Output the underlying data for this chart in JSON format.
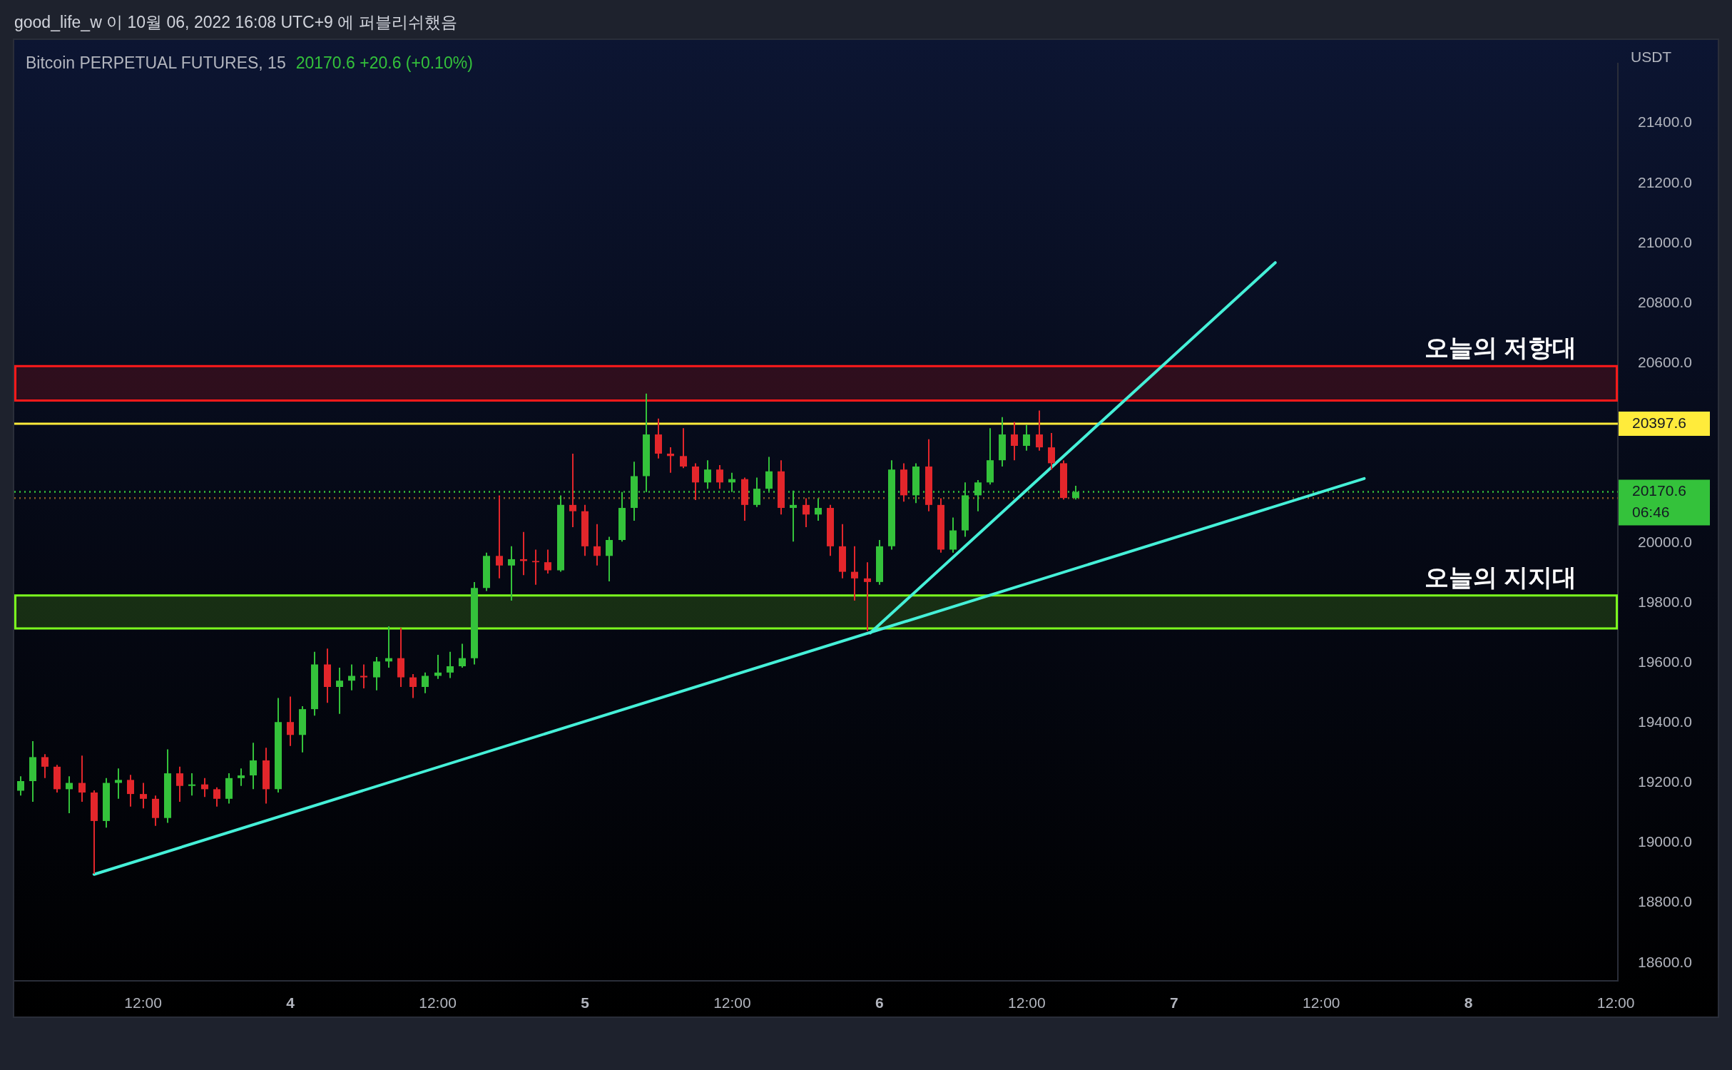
{
  "chart_data": {
    "type": "candlestick",
    "title": "Bitcoin PERPETUAL FUTURES, 15",
    "subtitle": "20170.6 +20.6 (+0.10%)",
    "ylabel": "USDT",
    "annotations": [
      "good_life_w 이 10월 06, 2022 16:08 UTC+9 에 퍼블리쉬했음"
    ],
    "x": [
      "2022-10-03T02:00",
      "2022-10-03T03:00",
      "2022-10-03T04:00",
      "2022-10-03T05:00",
      "2022-10-03T06:00",
      "2022-10-03T07:00",
      "2022-10-03T08:00",
      "2022-10-03T09:00",
      "2022-10-03T10:00",
      "2022-10-03T11:00",
      "2022-10-03T12:00",
      "2022-10-03T13:00",
      "2022-10-03T14:00",
      "2022-10-03T15:00",
      "2022-10-03T16:00",
      "2022-10-03T17:00",
      "2022-10-03T18:00",
      "2022-10-03T19:00",
      "2022-10-03T20:00",
      "2022-10-03T21:00",
      "2022-10-03T22:00",
      "2022-10-03T23:00",
      "2022-10-04T00:00",
      "2022-10-04T01:00",
      "2022-10-04T02:00",
      "2022-10-04T03:00",
      "2022-10-04T04:00",
      "2022-10-04T05:00",
      "2022-10-04T06:00",
      "2022-10-04T07:00",
      "2022-10-04T08:00",
      "2022-10-04T09:00",
      "2022-10-04T10:00",
      "2022-10-04T11:00",
      "2022-10-04T12:00",
      "2022-10-04T13:00",
      "2022-10-04T14:00",
      "2022-10-04T15:00",
      "2022-10-04T16:00",
      "2022-10-04T17:00",
      "2022-10-04T18:00",
      "2022-10-04T19:00",
      "2022-10-04T20:00",
      "2022-10-04T21:00",
      "2022-10-04T22:00",
      "2022-10-04T23:00",
      "2022-10-05T00:00",
      "2022-10-05T01:00",
      "2022-10-05T02:00",
      "2022-10-05T03:00",
      "2022-10-05T04:00",
      "2022-10-05T05:00",
      "2022-10-05T06:00",
      "2022-10-05T07:00",
      "2022-10-05T08:00",
      "2022-10-05T09:00",
      "2022-10-05T10:00",
      "2022-10-05T11:00",
      "2022-10-05T12:00",
      "2022-10-05T13:00",
      "2022-10-05T14:00",
      "2022-10-05T15:00",
      "2022-10-05T16:00",
      "2022-10-05T17:00",
      "2022-10-05T18:00",
      "2022-10-05T19:00",
      "2022-10-05T20:00",
      "2022-10-05T21:00",
      "2022-10-05T22:00",
      "2022-10-05T23:00",
      "2022-10-06T00:00",
      "2022-10-06T01:00",
      "2022-10-06T02:00",
      "2022-10-06T03:00",
      "2022-10-06T04:00",
      "2022-10-06T05:00",
      "2022-10-06T06:00",
      "2022-10-06T07:00",
      "2022-10-06T08:00",
      "2022-10-06T09:00",
      "2022-10-06T10:00",
      "2022-10-06T11:00",
      "2022-10-06T12:00",
      "2022-10-06T13:00",
      "2022-10-06T14:00",
      "2022-10-06T15:00",
      "2022-10-06T16:00"
    ],
    "ohlc": [
      [
        19174,
        19222,
        19158,
        19206
      ],
      [
        19206,
        19339,
        19137,
        19286
      ],
      [
        19286,
        19296,
        19216,
        19254
      ],
      [
        19254,
        19260,
        19168,
        19179
      ],
      [
        19179,
        19222,
        19099,
        19200
      ],
      [
        19200,
        19291,
        19137,
        19168
      ],
      [
        19168,
        19175,
        18897,
        19073
      ],
      [
        19073,
        19216,
        19051,
        19200
      ],
      [
        19200,
        19248,
        19147,
        19210
      ],
      [
        19210,
        19227,
        19121,
        19163
      ],
      [
        19163,
        19200,
        19115,
        19147
      ],
      [
        19147,
        19158,
        19057,
        19083
      ],
      [
        19083,
        19312,
        19067,
        19232
      ],
      [
        19232,
        19254,
        19137,
        19190
      ],
      [
        19190,
        19232,
        19158,
        19195
      ],
      [
        19195,
        19216,
        19153,
        19179
      ],
      [
        19179,
        19185,
        19121,
        19147
      ],
      [
        19147,
        19232,
        19131,
        19216
      ],
      [
        19216,
        19248,
        19190,
        19225
      ],
      [
        19225,
        19334,
        19179,
        19275
      ],
      [
        19275,
        19317,
        19131,
        19179
      ],
      [
        19179,
        19483,
        19168,
        19403
      ],
      [
        19403,
        19488,
        19323,
        19360
      ],
      [
        19360,
        19456,
        19302,
        19446
      ],
      [
        19446,
        19637,
        19424,
        19595
      ],
      [
        19595,
        19648,
        19467,
        19520
      ],
      [
        19520,
        19584,
        19430,
        19541
      ],
      [
        19541,
        19595,
        19509,
        19557
      ],
      [
        19557,
        19595,
        19515,
        19552
      ],
      [
        19552,
        19620,
        19509,
        19605
      ],
      [
        19605,
        19722,
        19584,
        19616
      ],
      [
        19616,
        19717,
        19520,
        19552
      ],
      [
        19552,
        19563,
        19483,
        19520
      ],
      [
        19520,
        19568,
        19499,
        19557
      ],
      [
        19557,
        19627,
        19547,
        19568
      ],
      [
        19568,
        19637,
        19550,
        19589
      ],
      [
        19589,
        19664,
        19584,
        19616
      ],
      [
        19616,
        19870,
        19595,
        19850
      ],
      [
        19850,
        19968,
        19840,
        19957
      ],
      [
        19957,
        20159,
        19882,
        19925
      ],
      [
        19925,
        19989,
        19808,
        19946
      ],
      [
        19946,
        20037,
        19893,
        19940
      ],
      [
        19940,
        19978,
        19861,
        19936
      ],
      [
        19936,
        19978,
        19898,
        19909
      ],
      [
        19909,
        20159,
        19904,
        20127
      ],
      [
        20127,
        20298,
        20053,
        20106
      ],
      [
        20106,
        20127,
        19957,
        19989
      ],
      [
        19989,
        20063,
        19925,
        19957
      ],
      [
        19957,
        20021,
        19872,
        20010
      ],
      [
        20010,
        20170,
        20005,
        20117
      ],
      [
        20117,
        20271,
        20074,
        20223
      ],
      [
        20223,
        20498,
        20170,
        20362
      ],
      [
        20362,
        20415,
        20282,
        20298
      ],
      [
        20298,
        20319,
        20234,
        20290
      ],
      [
        20290,
        20383,
        20250,
        20255
      ],
      [
        20255,
        20266,
        20143,
        20202
      ],
      [
        20202,
        20276,
        20181,
        20245
      ],
      [
        20245,
        20260,
        20181,
        20202
      ],
      [
        20202,
        20234,
        20170,
        20213
      ],
      [
        20213,
        20218,
        20074,
        20127
      ],
      [
        20127,
        20218,
        20120,
        20181
      ],
      [
        20181,
        20287,
        20170,
        20239
      ],
      [
        20239,
        20276,
        20095,
        20117
      ],
      [
        20117,
        20175,
        20005,
        20127
      ],
      [
        20127,
        20149,
        20053,
        20095
      ],
      [
        20095,
        20149,
        20074,
        20117
      ],
      [
        20117,
        20127,
        19957,
        19989
      ],
      [
        19989,
        20063,
        19882,
        19904
      ],
      [
        19904,
        19989,
        19808,
        19882
      ],
      [
        19882,
        19936,
        19707,
        19870
      ],
      [
        19870,
        20010,
        19861,
        19989
      ],
      [
        19989,
        20276,
        19978,
        20245
      ],
      [
        20245,
        20266,
        20138,
        20159
      ],
      [
        20159,
        20266,
        20133,
        20255
      ],
      [
        20255,
        20346,
        20106,
        20127
      ],
      [
        20127,
        20149,
        19968,
        19978
      ],
      [
        19978,
        20085,
        19968,
        20042
      ],
      [
        20042,
        20202,
        20021,
        20159
      ],
      [
        20159,
        20210,
        20106,
        20202
      ],
      [
        20202,
        20383,
        20195,
        20276
      ],
      [
        20276,
        20420,
        20255,
        20362
      ],
      [
        20362,
        20404,
        20276,
        20324
      ],
      [
        20324,
        20394,
        20308,
        20362
      ],
      [
        20362,
        20442,
        20308,
        20319
      ],
      [
        20319,
        20367,
        20245,
        20266
      ],
      [
        20266,
        20275,
        20145,
        20150
      ],
      [
        20150,
        20191,
        20145,
        20170.6
      ]
    ],
    "colors": [
      "#34c23b",
      "#34c23b",
      "#e3262b",
      "#e3262b",
      "#34c23b",
      "#e3262b",
      "#e3262b",
      "#34c23b",
      "#34c23b",
      "#e3262b",
      "#e3262b",
      "#e3262b",
      "#34c23b",
      "#e3262b",
      "#34c23b",
      "#e3262b",
      "#e3262b",
      "#34c23b",
      "#34c23b",
      "#34c23b",
      "#e3262b",
      "#34c23b",
      "#e3262b",
      "#34c23b",
      "#34c23b",
      "#e3262b",
      "#34c23b",
      "#34c23b",
      "#e3262b",
      "#34c23b",
      "#34c23b",
      "#e3262b",
      "#e3262b",
      "#34c23b",
      "#34c23b",
      "#34c23b",
      "#34c23b",
      "#34c23b",
      "#34c23b",
      "#e3262b",
      "#34c23b",
      "#e3262b",
      "#e3262b",
      "#e3262b",
      "#34c23b",
      "#e3262b",
      "#e3262b",
      "#e3262b",
      "#34c23b",
      "#34c23b",
      "#34c23b",
      "#34c23b",
      "#e3262b",
      "#e3262b",
      "#e3262b",
      "#e3262b",
      "#34c23b",
      "#e3262b",
      "#34c23b",
      "#e3262b",
      "#34c23b",
      "#34c23b",
      "#e3262b",
      "#34c23b",
      "#e3262b",
      "#34c23b",
      "#e3262b",
      "#e3262b",
      "#e3262b",
      "#e3262b",
      "#34c23b",
      "#34c23b",
      "#e3262b",
      "#34c23b",
      "#e3262b",
      "#e3262b",
      "#34c23b",
      "#34c23b",
      "#34c23b",
      "#34c23b",
      "#34c23b",
      "#e3262b",
      "#34c23b",
      "#e3262b",
      "#e3262b",
      "#e3262b",
      "#34c23b"
    ],
    "series": [
      {
        "type": "line",
        "color": "#45f0d8",
        "x": [
          "2022-10-03T08:00",
          "2022-10-07T15:30"
        ],
        "values": [
          18895,
          20215
        ]
      },
      {
        "type": "line",
        "color": "#45f0d8",
        "x": [
          "2022-10-05T23:15",
          "2022-10-07T08:15"
        ],
        "values": [
          19700,
          20935
        ]
      }
    ],
    "xlim": [
      "2022-10-03T01:30",
      "2022-10-08T12:10"
    ],
    "xticks": [
      {
        "value": "2022-10-03T12:00",
        "label": "12:00"
      },
      {
        "value": "2022-10-04",
        "label": "4"
      },
      {
        "value": "2022-10-04T12:00",
        "label": "12:00"
      },
      {
        "value": "2022-10-05",
        "label": "5"
      },
      {
        "value": "2022-10-05T12:00",
        "label": "12:00"
      },
      {
        "value": "2022-10-06",
        "label": "6"
      },
      {
        "value": "2022-10-06T12:00",
        "label": "12:00"
      },
      {
        "value": "2022-10-07",
        "label": "7"
      },
      {
        "value": "2022-10-07T12:00",
        "label": "12:00"
      },
      {
        "value": "2022-10-08",
        "label": "8"
      },
      {
        "value": "2022-10-08T12:00",
        "label": "12:00"
      }
    ],
    "ylim": [
      18540,
      21600
    ],
    "yticks": [
      {
        "value": 18600,
        "label": "18600.0"
      },
      {
        "value": 18800,
        "label": "18800.0"
      },
      {
        "value": 19000,
        "label": "19000.0"
      },
      {
        "value": 19200,
        "label": "19200.0"
      },
      {
        "value": 19400,
        "label": "19400.0"
      },
      {
        "value": 19600,
        "label": "19600.0"
      },
      {
        "value": 19800,
        "label": "19800.0"
      },
      {
        "value": 20000,
        "label": "20000.0"
      },
      {
        "value": 20600,
        "label": "20600.0"
      },
      {
        "value": 20800,
        "label": "20800.0"
      },
      {
        "value": 21000,
        "label": "21000.0"
      },
      {
        "value": 21200,
        "label": "21200.0"
      },
      {
        "value": 21400,
        "label": "21400.0"
      }
    ],
    "ref_lines": [
      {
        "axis": "y",
        "value": 20397.6,
        "label": "20397.6",
        "color": "#ffeb3b",
        "line_style": "solid"
      },
      {
        "axis": "y",
        "value": 20170.6,
        "label": "20170.6\n06:46",
        "color": "#34c23b",
        "line_style": "dotted"
      },
      {
        "axis": "y",
        "value": 20150,
        "color": "#8b5a22",
        "line_style": "dotted"
      }
    ],
    "bands": [
      {
        "axis": "y",
        "from": 20475,
        "to": 20590,
        "label": "오늘의 저항대",
        "color": "#ff1a1a"
      },
      {
        "axis": "y",
        "from": 19715,
        "to": 19825,
        "label": "오늘의 지지대",
        "color": "#7cff1e"
      }
    ]
  }
}
